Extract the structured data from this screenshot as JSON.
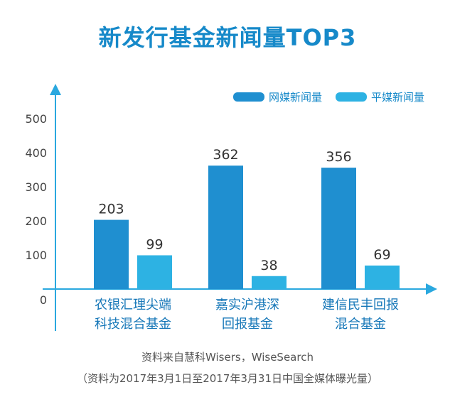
{
  "title": "新发行基金新闻量TOP3",
  "chart_data": {
    "type": "bar",
    "categories": [
      [
        "农银汇理尖端",
        "科技混合基金"
      ],
      [
        "嘉实沪港深",
        "回报基金"
      ],
      [
        "建信民丰回报",
        "混合基金"
      ]
    ],
    "series": [
      {
        "name": "网媒新闻量",
        "values": [
          203,
          362,
          356
        ]
      },
      {
        "name": "平媒新闻量",
        "values": [
          99,
          38,
          69
        ]
      }
    ],
    "yticks": [
      "0",
      "100",
      "200",
      "300",
      "400",
      "500"
    ],
    "ylim": [
      0,
      500
    ],
    "legend_position": "top-right",
    "grid": false
  },
  "colors": {
    "series1": "#1f8fd0",
    "series2": "#2db2e3",
    "title": "#1689c9",
    "axis": "#2aa8df"
  },
  "footnote": {
    "line1": "资料来自慧科Wisers，WiseSearch",
    "line2": "（资料为2017年3月1日至2017年3月31日中国全媒体曝光量）"
  }
}
